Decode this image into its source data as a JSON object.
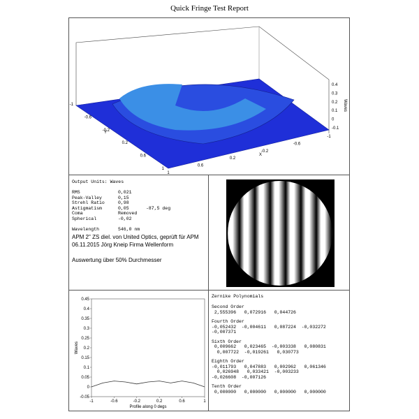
{
  "title": "Quick Fringe Test Report",
  "surface": {
    "x_label": "X",
    "y_label": "Y",
    "z_label": "Waves",
    "x_ticks": [
      -1,
      -0.6,
      -0.2,
      0.2,
      0.6,
      1
    ],
    "y_ticks": [
      -1,
      -0.6,
      -0.2,
      0.2,
      0.6,
      1
    ],
    "z_ticks": [
      -0.1,
      0,
      0.1,
      0.2,
      0.3,
      0.4
    ]
  },
  "stats": {
    "heading": "Output Units: Waves",
    "rows": [
      [
        "RMS",
        "0,021",
        ""
      ],
      [
        "Peak-Valley",
        "0,15",
        ""
      ],
      [
        "Strehl Ratio",
        "0,98",
        ""
      ],
      [
        "Astigmatism",
        "0,05",
        "-87,5 deg"
      ],
      [
        "Coma",
        "Removed",
        ""
      ],
      [
        "Spherical",
        "-0,02",
        ""
      ]
    ],
    "wavelength": [
      "Wavelength",
      "546,0 nm"
    ]
  },
  "notes": [
    "APM 2\" ZS diel. von United Optics, geprüft für APM",
    "06.11.2015 Jörg Kneip Firma Wellenform",
    "Auswertung über 50% Durchmesser"
  ],
  "profile": {
    "ylabel": "Waves",
    "xlabel": "Profile along 0 degs",
    "xlim": [
      -1,
      1
    ],
    "ylim": [
      -0.05,
      0.45
    ],
    "xticks": [
      -1,
      -0.6,
      -0.2,
      0.2,
      0.6,
      1
    ],
    "yticks": [
      -0.05,
      0,
      0.05,
      0.1,
      0.15,
      0.2,
      0.25,
      0.3,
      0.35,
      0.4,
      0.45
    ],
    "x": [
      -1,
      -0.8,
      -0.6,
      -0.4,
      -0.2,
      0,
      0.2,
      0.4,
      0.6,
      0.8,
      1
    ],
    "y": [
      0,
      0.02,
      0.03,
      0.025,
      0.015,
      0.025,
      0.03,
      0.02,
      0.03,
      0.02,
      0
    ]
  },
  "zernike": {
    "title": "Zernike Polynomials",
    "sections": [
      {
        "name": "Second Order",
        "lines": [
          " 2,555396   0,072916   0,044726"
        ]
      },
      {
        "name": "Fourth Order",
        "lines": [
          "-0,052432  -0,004611   0,087224  -0,032272",
          "-0,007371"
        ]
      },
      {
        "name": "Sixth Order",
        "lines": [
          " 0,009662   0,023465  -0,003338   0,080831",
          "  0,007722  -0,019261   0,030773"
        ]
      },
      {
        "name": "Eighth Order",
        "lines": [
          "-0,011793   0,047883   0,002962   0,061346",
          "  0,026948   0,033421  -0,003233",
          "-0,026608  -0,007126"
        ]
      },
      {
        "name": "Tenth Order",
        "lines": [
          " 0,000000   0,000000   0,000000   0,000000"
        ]
      }
    ]
  }
}
